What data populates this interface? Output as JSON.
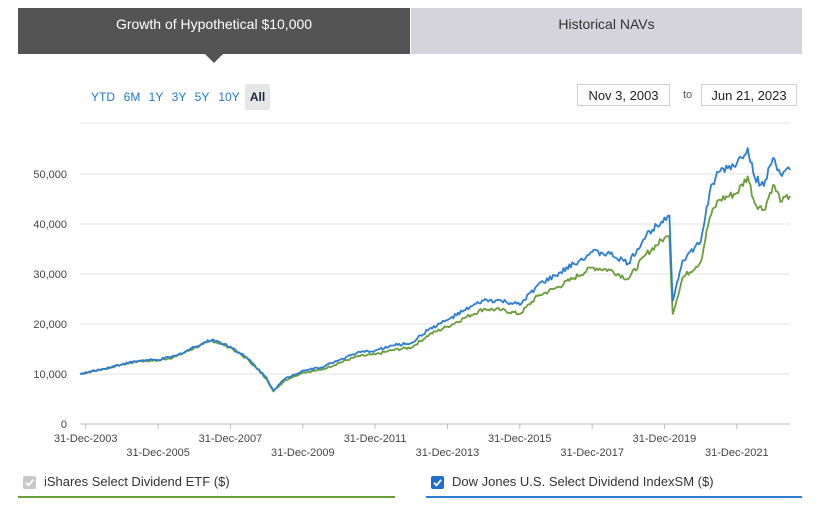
{
  "tabs": [
    {
      "label": "Growth of Hypothetical $10,000",
      "active": true
    },
    {
      "label": "Historical NAVs",
      "active": false
    }
  ],
  "ranges": [
    {
      "label": "YTD",
      "active": false
    },
    {
      "label": "6M",
      "active": false
    },
    {
      "label": "1Y",
      "active": false
    },
    {
      "label": "3Y",
      "active": false
    },
    {
      "label": "5Y",
      "active": false
    },
    {
      "label": "10Y",
      "active": false
    },
    {
      "label": "All",
      "active": true
    }
  ],
  "date_range": {
    "start": "Nov 3, 2003",
    "to_label": "to",
    "end": "Jun 21, 2023"
  },
  "legend": [
    {
      "label": "iShares Select Dividend ETF ($)",
      "checked": true,
      "disabled": true,
      "color": "#6a9e3a"
    },
    {
      "label": "Dow Jones U.S. Select Dividend IndexSM ($)",
      "checked": true,
      "disabled": false,
      "color": "#2d7ed1"
    }
  ],
  "chart_data": {
    "type": "line",
    "x_ticks": [
      "31-Dec-2003",
      "31-Dec-2005",
      "31-Dec-2007",
      "31-Dec-2009",
      "31-Dec-2011",
      "31-Dec-2013",
      "31-Dec-2015",
      "31-Dec-2017",
      "31-Dec-2019",
      "31-Dec-2021"
    ],
    "y_ticks": [
      "0",
      "10,000",
      "20,000",
      "30,000",
      "40,000",
      "50,000"
    ],
    "ylim": [
      0,
      55000
    ],
    "xlim": [
      "2003-11-03",
      "2023-06-21"
    ],
    "grid": true,
    "series": [
      {
        "name": "iShares Select Dividend ETF ($)",
        "color": "#6a9e3a",
        "points": [
          [
            "2003-11-03",
            10000
          ],
          [
            "2004-06-30",
            11000
          ],
          [
            "2004-12-31",
            11900
          ],
          [
            "2005-06-30",
            12600
          ],
          [
            "2005-12-31",
            12700
          ],
          [
            "2006-06-30",
            13500
          ],
          [
            "2006-12-31",
            15200
          ],
          [
            "2007-06-30",
            16700
          ],
          [
            "2007-12-31",
            15300
          ],
          [
            "2008-06-30",
            12800
          ],
          [
            "2008-12-31",
            9000
          ],
          [
            "2009-03-09",
            6500
          ],
          [
            "2009-06-30",
            8700
          ],
          [
            "2009-12-31",
            10300
          ],
          [
            "2010-06-30",
            10800
          ],
          [
            "2010-12-31",
            12200
          ],
          [
            "2011-06-30",
            13500
          ],
          [
            "2011-12-31",
            13900
          ],
          [
            "2012-06-30",
            14800
          ],
          [
            "2012-12-31",
            15300
          ],
          [
            "2013-06-30",
            17900
          ],
          [
            "2013-12-31",
            19500
          ],
          [
            "2014-06-30",
            21300
          ],
          [
            "2014-12-31",
            23000
          ],
          [
            "2015-06-30",
            22800
          ],
          [
            "2015-12-31",
            22000
          ],
          [
            "2016-06-30",
            25600
          ],
          [
            "2016-12-31",
            27200
          ],
          [
            "2017-06-30",
            29200
          ],
          [
            "2017-12-31",
            31300
          ],
          [
            "2018-06-30",
            30800
          ],
          [
            "2018-12-31",
            29000
          ],
          [
            "2019-06-30",
            34000
          ],
          [
            "2019-12-31",
            37200
          ],
          [
            "2020-02-19",
            37400
          ],
          [
            "2020-03-23",
            22000
          ],
          [
            "2020-06-30",
            29200
          ],
          [
            "2020-12-31",
            32400
          ],
          [
            "2021-03-31",
            41200
          ],
          [
            "2021-06-30",
            44800
          ],
          [
            "2021-12-31",
            46200
          ],
          [
            "2022-04-20",
            49500
          ],
          [
            "2022-06-30",
            44200
          ],
          [
            "2022-09-30",
            42800
          ],
          [
            "2022-12-31",
            47800
          ],
          [
            "2023-03-31",
            44500
          ],
          [
            "2023-06-21",
            45600
          ]
        ]
      },
      {
        "name": "Dow Jones U.S. Select Dividend IndexSM ($)",
        "color": "#2d7ed1",
        "points": [
          [
            "2003-11-03",
            10000
          ],
          [
            "2004-06-30",
            11050
          ],
          [
            "2004-12-31",
            11950
          ],
          [
            "2005-06-30",
            12700
          ],
          [
            "2005-12-31",
            12800
          ],
          [
            "2006-06-30",
            13650
          ],
          [
            "2006-12-31",
            15400
          ],
          [
            "2007-06-30",
            16900
          ],
          [
            "2007-12-31",
            15500
          ],
          [
            "2008-06-30",
            13000
          ],
          [
            "2008-12-31",
            9200
          ],
          [
            "2009-03-09",
            6700
          ],
          [
            "2009-06-30",
            9000
          ],
          [
            "2009-12-31",
            10700
          ],
          [
            "2010-06-30",
            11300
          ],
          [
            "2010-12-31",
            12800
          ],
          [
            "2011-06-30",
            14200
          ],
          [
            "2011-12-31",
            14700
          ],
          [
            "2012-06-30",
            15700
          ],
          [
            "2012-12-31",
            16200
          ],
          [
            "2013-06-30",
            19000
          ],
          [
            "2013-12-31",
            20800
          ],
          [
            "2014-06-30",
            22800
          ],
          [
            "2014-12-31",
            24700
          ],
          [
            "2015-06-30",
            24600
          ],
          [
            "2015-12-31",
            23800
          ],
          [
            "2016-06-30",
            27800
          ],
          [
            "2016-12-31",
            29700
          ],
          [
            "2017-06-30",
            32000
          ],
          [
            "2017-12-31",
            34400
          ],
          [
            "2018-06-30",
            34000
          ],
          [
            "2018-12-31",
            32100
          ],
          [
            "2019-06-30",
            37700
          ],
          [
            "2019-12-31",
            41300
          ],
          [
            "2020-02-19",
            41700
          ],
          [
            "2020-03-23",
            24600
          ],
          [
            "2020-06-30",
            32700
          ],
          [
            "2020-12-31",
            36400
          ],
          [
            "2021-03-31",
            46300
          ],
          [
            "2021-06-30",
            50400
          ],
          [
            "2021-12-31",
            52100
          ],
          [
            "2022-04-20",
            55200
          ],
          [
            "2022-06-30",
            49300
          ],
          [
            "2022-09-30",
            47600
          ],
          [
            "2022-12-31",
            53200
          ],
          [
            "2023-03-31",
            49600
          ],
          [
            "2023-06-21",
            50800
          ]
        ]
      }
    ]
  }
}
